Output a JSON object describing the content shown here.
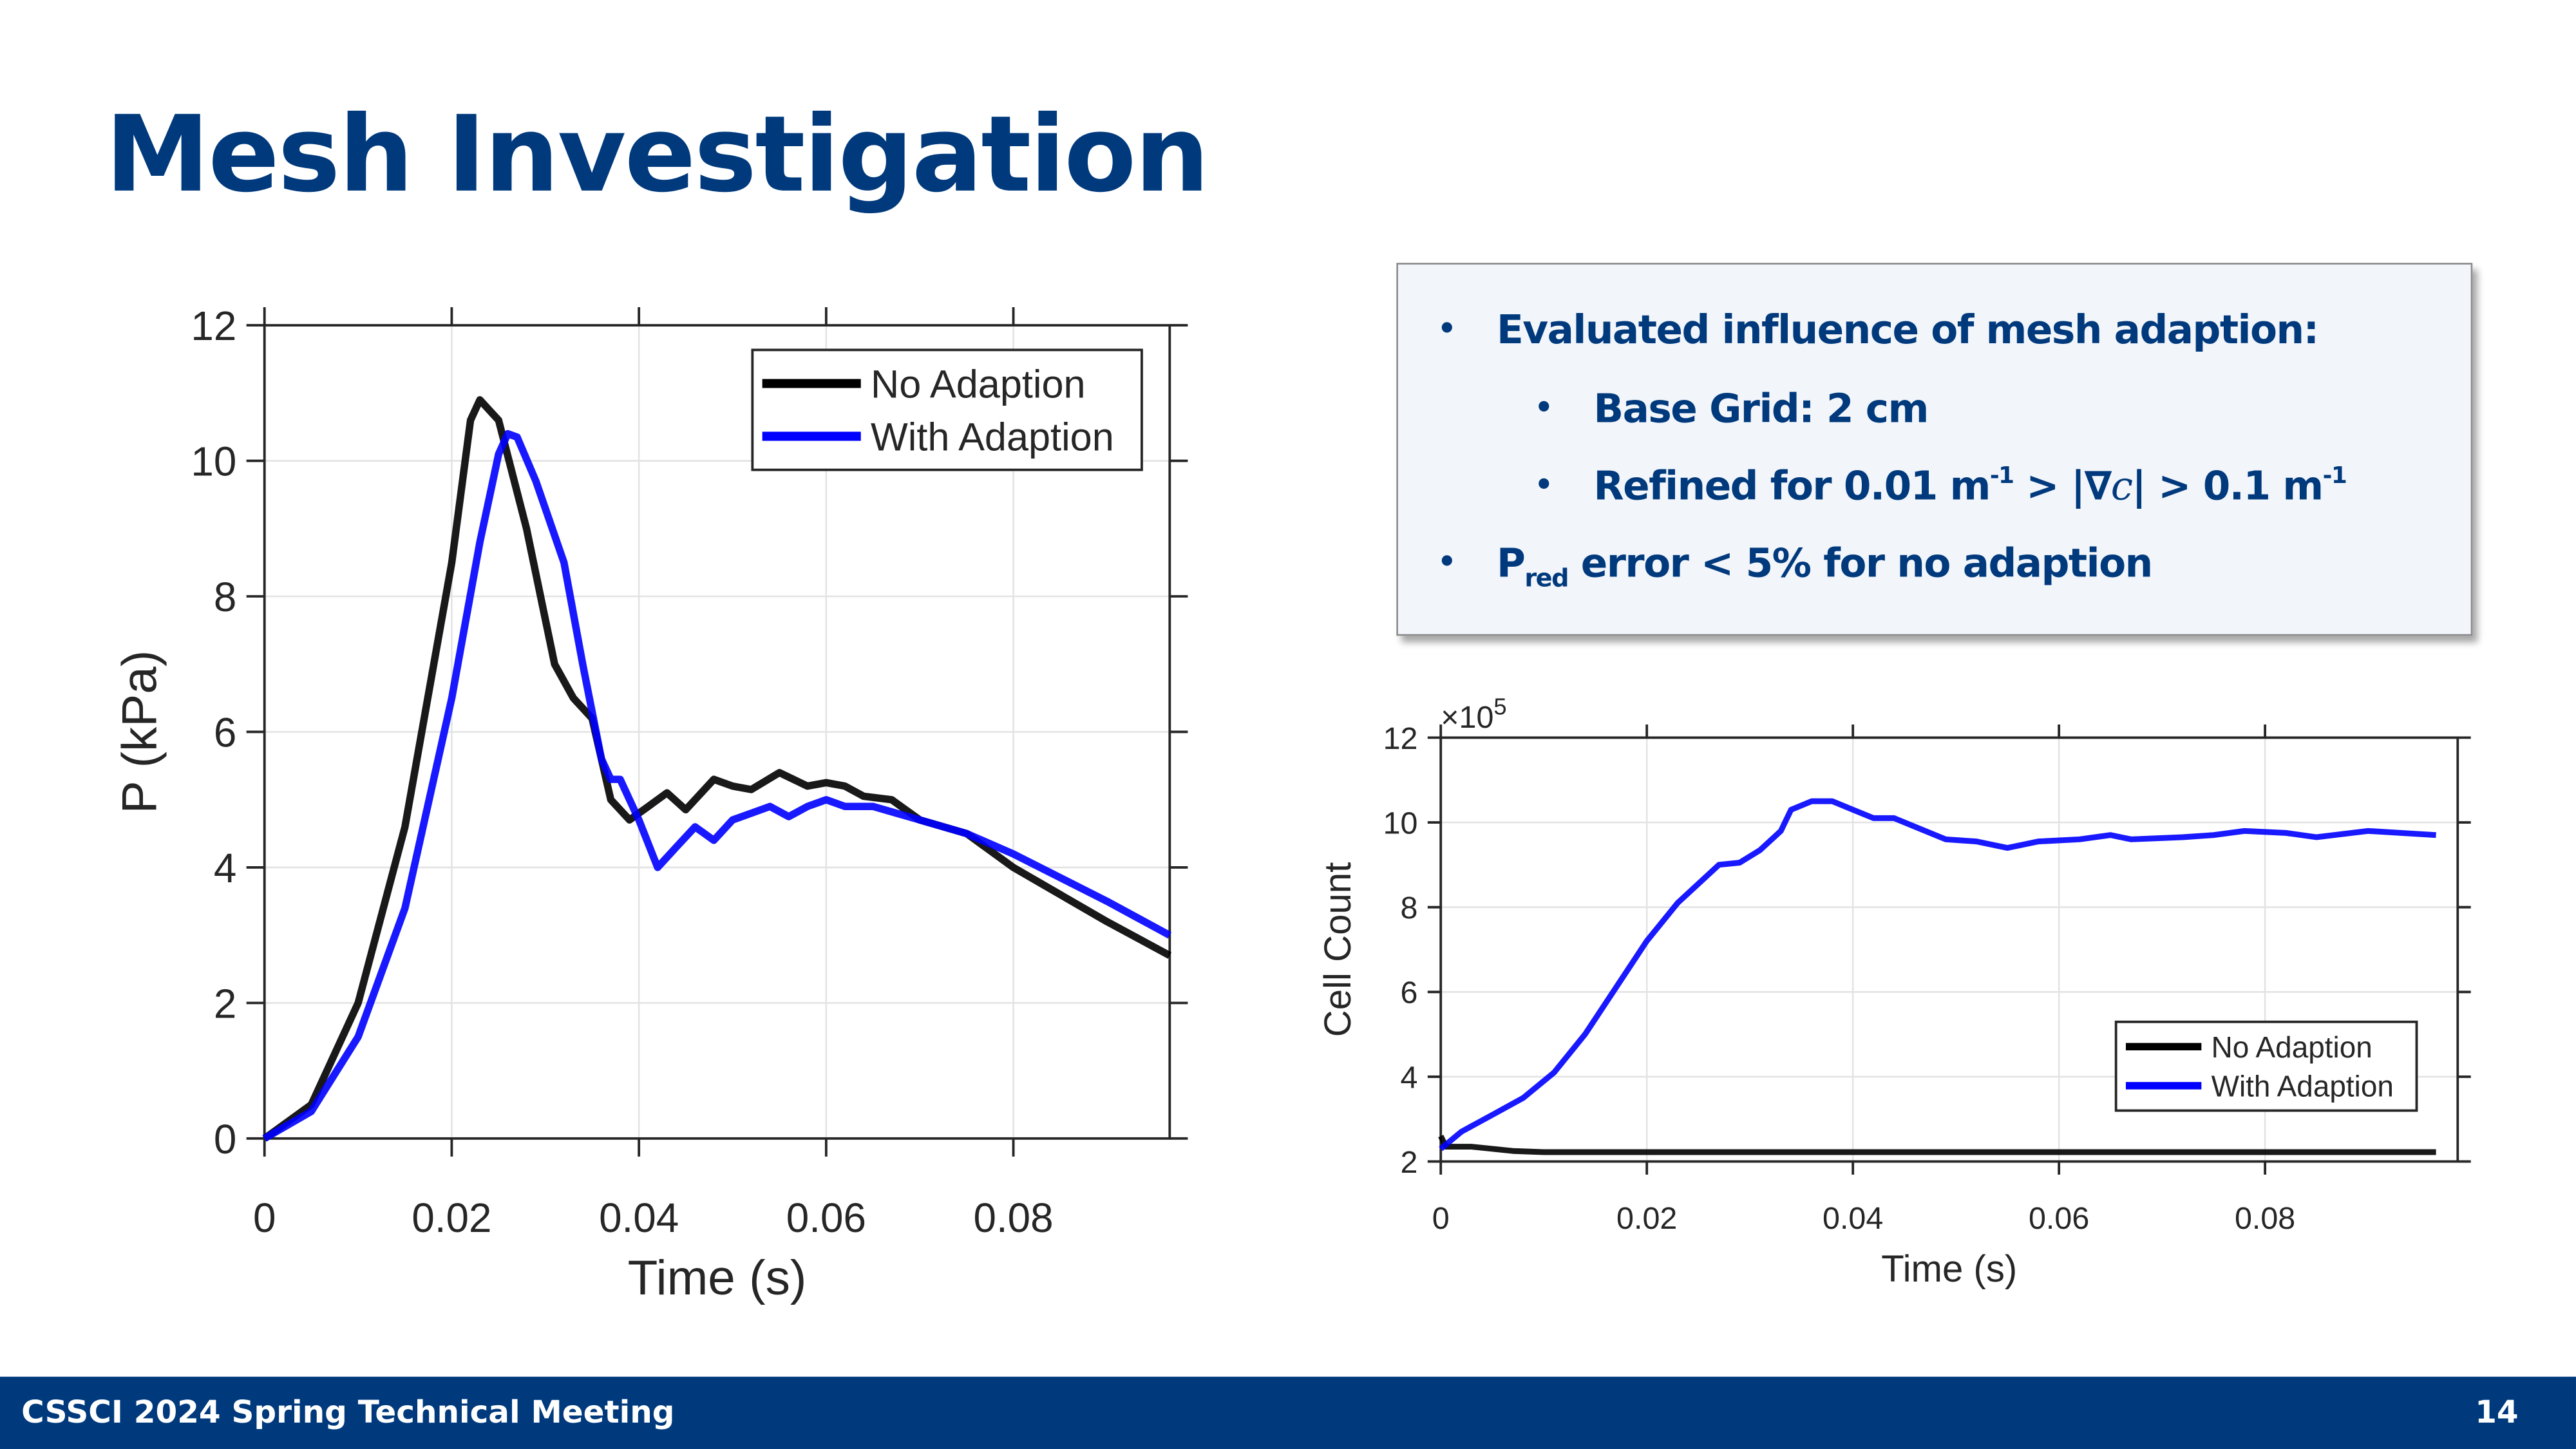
{
  "title": "Mesh Investigation",
  "bullets": {
    "b1": "Evaluated influence of mesh adaption:",
    "b2": "Base Grid: 2 cm",
    "b3_a": "Refined for 0.01 m",
    "b3_sup1": "-1",
    "b3_b": " > |∇",
    "b3_c": "c",
    "b3_d": "| > 0.1 m",
    "b3_sup2": "-1",
    "b4_a": "P",
    "b4_sub": "red",
    "b4_b": " error < 5% for no adaption"
  },
  "footer": {
    "left": "CSSCI 2024 Spring Technical Meeting",
    "page": "14"
  },
  "colors": {
    "no_adaption": "#000000",
    "with_adaption": "#0000ff",
    "accent": "#003a7d"
  },
  "chart_data": [
    {
      "type": "line",
      "xlabel": "Time (s)",
      "ylabel": "P (kPa)",
      "xlim": [
        0,
        0.0967
      ],
      "ylim": [
        0,
        12
      ],
      "xticks": [
        "0",
        "0.02",
        "0.04",
        "0.06",
        "0.08"
      ],
      "yticks": [
        "0",
        "2",
        "4",
        "6",
        "8",
        "10",
        "12"
      ],
      "grid": true,
      "legend": "top-right",
      "series": [
        {
          "name": "No Adaption",
          "x": [
            0,
            0.005,
            0.01,
            0.015,
            0.02,
            0.022,
            0.023,
            0.025,
            0.028,
            0.031,
            0.033,
            0.035,
            0.037,
            0.039,
            0.041,
            0.043,
            0.045,
            0.048,
            0.05,
            0.052,
            0.055,
            0.058,
            0.06,
            0.062,
            0.064,
            0.067,
            0.07,
            0.075,
            0.08,
            0.085,
            0.09,
            0.0967
          ],
          "y": [
            0,
            0.5,
            2,
            4.6,
            8.5,
            10.6,
            10.9,
            10.6,
            9,
            7,
            6.5,
            6.2,
            5,
            4.7,
            4.9,
            5.1,
            4.85,
            5.3,
            5.2,
            5.15,
            5.4,
            5.2,
            5.25,
            5.2,
            5.05,
            5.0,
            4.7,
            4.5,
            4.0,
            3.6,
            3.2,
            2.7
          ]
        },
        {
          "name": "With Adaption",
          "x": [
            0,
            0.005,
            0.01,
            0.015,
            0.02,
            0.023,
            0.025,
            0.026,
            0.027,
            0.029,
            0.032,
            0.034,
            0.036,
            0.037,
            0.038,
            0.04,
            0.042,
            0.044,
            0.046,
            0.048,
            0.05,
            0.052,
            0.054,
            0.056,
            0.058,
            0.06,
            0.062,
            0.065,
            0.07,
            0.075,
            0.08,
            0.085,
            0.09,
            0.0967
          ],
          "y": [
            0,
            0.4,
            1.5,
            3.4,
            6.5,
            8.8,
            10.1,
            10.4,
            10.35,
            9.7,
            8.5,
            7,
            5.6,
            5.3,
            5.3,
            4.7,
            4.0,
            4.3,
            4.6,
            4.4,
            4.7,
            4.8,
            4.9,
            4.75,
            4.9,
            5.0,
            4.9,
            4.9,
            4.7,
            4.5,
            4.2,
            3.85,
            3.5,
            3.0
          ]
        }
      ]
    },
    {
      "type": "line",
      "xlabel": "Time (s)",
      "ylabel": "Cell Count",
      "exponent": "×10",
      "exponent_power": "5",
      "xlim": [
        0,
        0.0987
      ],
      "ylim": [
        2,
        12
      ],
      "xticks": [
        "0",
        "0.02",
        "0.04",
        "0.06",
        "0.08"
      ],
      "yticks": [
        "2",
        "4",
        "6",
        "8",
        "10",
        "12"
      ],
      "grid": true,
      "legend": "bottom-right",
      "series": [
        {
          "name": "No Adaption",
          "x": [
            0,
            0.0005,
            0.003,
            0.007,
            0.01,
            0.0966
          ],
          "y": [
            2.6,
            2.35,
            2.35,
            2.25,
            2.22,
            2.22
          ]
        },
        {
          "name": "With Adaption",
          "x": [
            0,
            0.002,
            0.005,
            0.008,
            0.011,
            0.014,
            0.017,
            0.02,
            0.023,
            0.027,
            0.029,
            0.031,
            0.033,
            0.034,
            0.036,
            0.038,
            0.04,
            0.042,
            0.044,
            0.046,
            0.049,
            0.052,
            0.055,
            0.058,
            0.062,
            0.065,
            0.067,
            0.072,
            0.075,
            0.078,
            0.082,
            0.085,
            0.09,
            0.0966
          ],
          "y": [
            2.3,
            2.7,
            3.1,
            3.5,
            4.1,
            5,
            6.1,
            7.2,
            8.1,
            9,
            9.05,
            9.35,
            9.8,
            10.3,
            10.5,
            10.5,
            10.3,
            10.1,
            10.1,
            9.9,
            9.6,
            9.55,
            9.4,
            9.55,
            9.6,
            9.7,
            9.6,
            9.65,
            9.7,
            9.8,
            9.75,
            9.65,
            9.8,
            9.7
          ]
        }
      ]
    }
  ]
}
